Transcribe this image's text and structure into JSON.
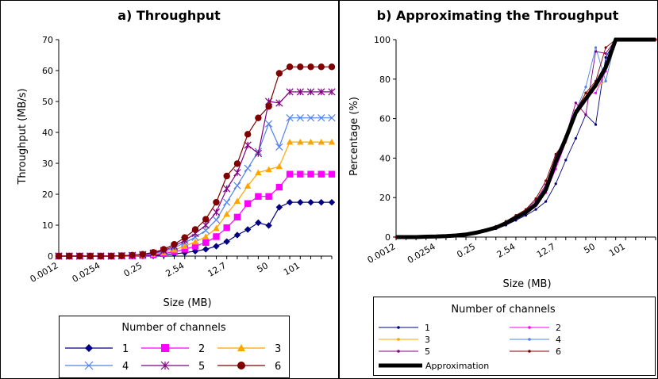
{
  "chart_data": [
    {
      "type": "line",
      "title": "a) Throughput",
      "xlabel": "Size (MB)",
      "ylabel": "Throughput (MB/s)",
      "ylim": [
        0,
        70
      ],
      "yticks": [
        "0",
        "10",
        "20",
        "30",
        "40",
        "50",
        "60",
        "70"
      ],
      "x_tick_labels": [
        {
          "i": 0,
          "label": "0.0012"
        },
        {
          "i": 4,
          "label": "0.0254"
        },
        {
          "i": 8,
          "label": "0.25"
        },
        {
          "i": 12,
          "label": "2.54"
        },
        {
          "i": 16,
          "label": "12.7"
        },
        {
          "i": 20,
          "label": "50"
        },
        {
          "i": 23,
          "label": "101"
        }
      ],
      "grid": false,
      "legend": {
        "title": "Number of channels",
        "position": "bottom"
      },
      "series": [
        {
          "name": "1",
          "color": "#000080",
          "marker": "diamond",
          "values": [
            0,
            0,
            0,
            0,
            0,
            0,
            0,
            0,
            0.1,
            0.2,
            0.4,
            0.7,
            1.1,
            1.6,
            2.2,
            3.2,
            4.7,
            6.8,
            8.6,
            10.8,
            9.9,
            15.8,
            17.4,
            17.4,
            17.4,
            17.4,
            17.4
          ]
        },
        {
          "name": "2",
          "color": "#FF00FF",
          "marker": "square",
          "values": [
            0,
            0,
            0,
            0,
            0,
            0,
            0.1,
            0.1,
            0.2,
            0.4,
            0.8,
            1.4,
            2.2,
            3.2,
            4.4,
            6.3,
            9.2,
            12.6,
            17.0,
            19.3,
            19.3,
            22.3,
            26.5,
            26.5,
            26.5,
            26.5,
            26.5
          ]
        },
        {
          "name": "3",
          "color": "#FFA500",
          "marker": "triangle",
          "values": [
            0,
            0,
            0,
            0,
            0,
            0,
            0.1,
            0.1,
            0.3,
            0.6,
            1.1,
            2.0,
            3.2,
            4.6,
            6.3,
            9.0,
            13.6,
            17.8,
            22.7,
            27.0,
            28.0,
            29.0,
            36.9,
            36.9,
            36.9,
            36.9,
            36.9
          ]
        },
        {
          "name": "4",
          "color": "#4F81EF",
          "marker": "x",
          "values": [
            0,
            0,
            0,
            0,
            0,
            0,
            0.1,
            0.2,
            0.4,
            0.8,
            1.5,
            2.7,
            4.3,
            6.1,
            8.3,
            11.7,
            17.4,
            22.8,
            28.4,
            33.8,
            42.8,
            35.3,
            44.7,
            44.7,
            44.7,
            44.7,
            44.7
          ]
        },
        {
          "name": "5",
          "color": "#800080",
          "marker": "star",
          "values": [
            0,
            0,
            0,
            0,
            0,
            0,
            0.1,
            0.2,
            0.5,
            1.0,
            1.8,
            3.2,
            5.1,
            7.3,
            10.0,
            14.2,
            21.8,
            27.0,
            35.9,
            33.2,
            50.0,
            49.5,
            53.1,
            53.1,
            53.1,
            53.1,
            53.1
          ]
        },
        {
          "name": "6",
          "color": "#800000",
          "marker": "circle",
          "values": [
            0,
            0,
            0,
            0,
            0,
            0,
            0.1,
            0.3,
            0.6,
            1.2,
            2.2,
            3.8,
            6.0,
            8.6,
            11.9,
            17.4,
            25.9,
            29.9,
            39.4,
            44.7,
            48.4,
            59.1,
            61.2,
            61.2,
            61.2,
            61.2,
            61.2
          ]
        }
      ]
    },
    {
      "type": "line",
      "title": "b) Approximating  the Throughput",
      "xlabel": "Size (MB)",
      "ylabel": "Percentage (%)",
      "ylim": [
        0,
        100
      ],
      "yticks": [
        "0",
        "20",
        "40",
        "60",
        "80",
        "100"
      ],
      "x_tick_labels": [
        {
          "i": 0,
          "label": "0.0012"
        },
        {
          "i": 4,
          "label": "0.0254"
        },
        {
          "i": 8,
          "label": "0.25"
        },
        {
          "i": 12,
          "label": "2.54"
        },
        {
          "i": 16,
          "label": "12.7"
        },
        {
          "i": 20,
          "label": "50"
        },
        {
          "i": 23,
          "label": "101"
        }
      ],
      "grid": false,
      "legend": {
        "title": "Number of channels",
        "position": "bottom"
      },
      "series": [
        {
          "name": "1",
          "color": "#000080",
          "values": [
            0,
            0,
            0,
            0.2,
            0.3,
            0.5,
            0.8,
            1.2,
            2.0,
            3.0,
            4.2,
            6.0,
            8.5,
            11.0,
            14.0,
            18.0,
            27.0,
            39.0,
            50.0,
            62.0,
            57.0,
            91.0,
            100,
            100,
            100,
            100,
            100
          ]
        },
        {
          "name": "2",
          "color": "#FF00FF",
          "values": [
            0,
            0,
            0,
            0.2,
            0.3,
            0.5,
            0.8,
            1.3,
            2.2,
            3.3,
            4.6,
            6.7,
            9.5,
            12.2,
            15.8,
            22.5,
            34.5,
            48.0,
            63.0,
            73.0,
            73.0,
            84.0,
            100,
            100,
            100,
            100,
            100
          ]
        },
        {
          "name": "3",
          "color": "#FFA500",
          "values": [
            0,
            0,
            0,
            0.2,
            0.3,
            0.5,
            0.8,
            1.3,
            2.2,
            3.4,
            4.8,
            7.0,
            9.8,
            12.5,
            16.5,
            24.0,
            37.0,
            48.0,
            62.0,
            73.0,
            76.0,
            79.0,
            100,
            100,
            100,
            100,
            100
          ]
        },
        {
          "name": "4",
          "color": "#4F81EF",
          "values": [
            0,
            0,
            0,
            0.2,
            0.3,
            0.5,
            0.8,
            1.4,
            2.3,
            3.5,
            5.0,
            7.2,
            10.0,
            13.0,
            17.5,
            25.5,
            39.0,
            51.0,
            64.0,
            76.0,
            96.0,
            79.0,
            100,
            100,
            100,
            100,
            100
          ]
        },
        {
          "name": "5",
          "color": "#800080",
          "values": [
            0,
            0,
            0,
            0.2,
            0.3,
            0.5,
            0.8,
            1.4,
            2.4,
            3.6,
            5.2,
            7.5,
            10.5,
            13.7,
            18.5,
            26.5,
            41.0,
            51.0,
            68.0,
            62.0,
            94.0,
            93.0,
            100,
            100,
            100,
            100,
            100
          ]
        },
        {
          "name": "6",
          "color": "#800000",
          "values": [
            0,
            0,
            0,
            0.2,
            0.3,
            0.5,
            0.8,
            1.5,
            2.5,
            3.8,
            5.5,
            8.0,
            11.0,
            14.0,
            19.5,
            28.5,
            42.0,
            49.0,
            64.0,
            73.0,
            79.0,
            96.0,
            100,
            100,
            100,
            100,
            100
          ]
        },
        {
          "name": "Approximation",
          "color": "#000000",
          "values": [
            0,
            0,
            0,
            0.2,
            0.3,
            0.5,
            0.8,
            1.3,
            2.2,
            3.4,
            4.8,
            7.0,
            9.8,
            12.5,
            16.5,
            24.0,
            38.0,
            50.0,
            63.0,
            70.0,
            77.0,
            86.0,
            100,
            100,
            100,
            100,
            100
          ]
        }
      ]
    }
  ]
}
